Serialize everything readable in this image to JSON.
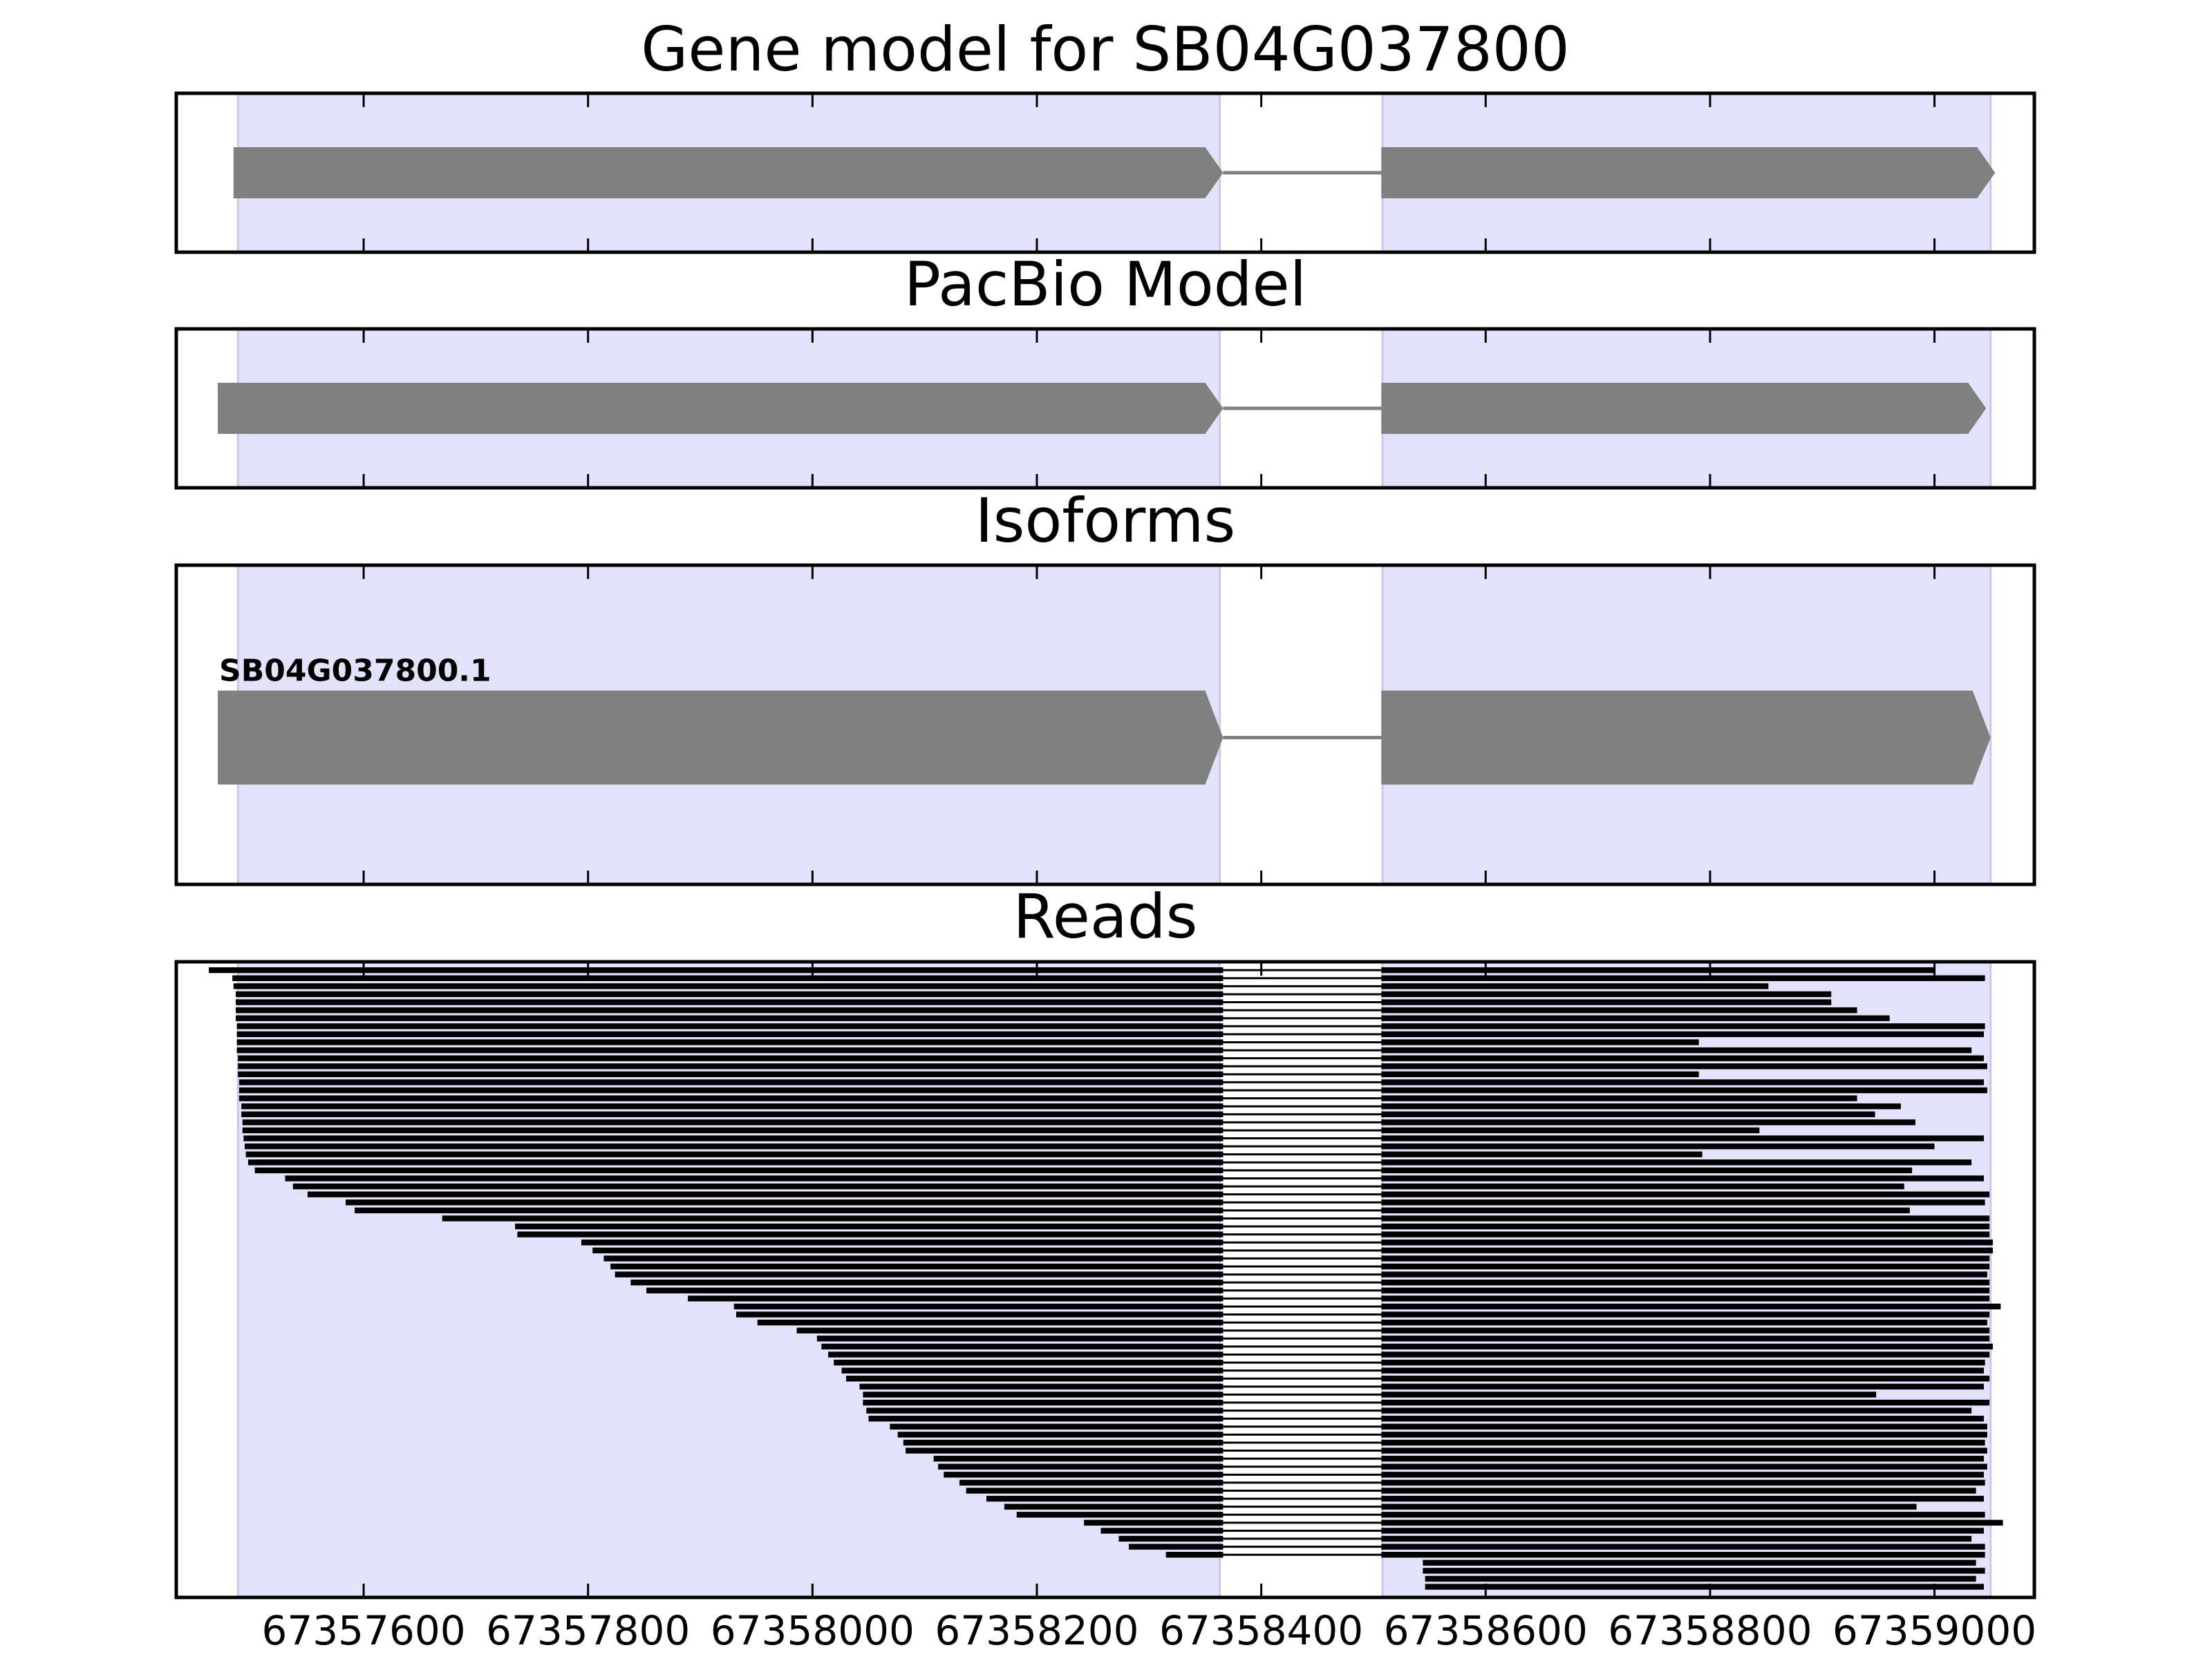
{
  "chart_data": [
    {
      "type": "gene",
      "title": "Gene model for SB04G037800",
      "xlim": [
        67357433,
        67359089
      ],
      "xticks": [
        67357600,
        67357800,
        67358000,
        67358200,
        67358400,
        67358600,
        67358800,
        67359000
      ],
      "highlight": [
        [
          67357488,
          67358363
        ],
        [
          67358508,
          67359050
        ]
      ],
      "highlight_color": "#e2e2fb",
      "color": "#808080",
      "exons": [
        [
          67357484,
          67358366
        ],
        [
          67358507,
          67359054
        ]
      ]
    },
    {
      "type": "gene",
      "title": "PacBio Model",
      "xlim": [
        67357433,
        67359089
      ],
      "xticks": [
        67357600,
        67357800,
        67358000,
        67358200,
        67358400,
        67358600,
        67358800,
        67359000
      ],
      "highlight": [
        [
          67357488,
          67358363
        ],
        [
          67358508,
          67359050
        ]
      ],
      "highlight_color": "#e2e2fb",
      "color": "#808080",
      "exons": [
        [
          67357470,
          67358366
        ],
        [
          67358507,
          67359046
        ]
      ]
    },
    {
      "type": "gene",
      "title": "Isoforms",
      "label": "SB04G037800.1",
      "xlim": [
        67357433,
        67359089
      ],
      "xticks": [
        67357600,
        67357800,
        67358000,
        67358200,
        67358400,
        67358600,
        67358800,
        67359000
      ],
      "highlight": [
        [
          67357488,
          67358363
        ],
        [
          67358508,
          67359050
        ]
      ],
      "highlight_color": "#e2e2fb",
      "color": "#808080",
      "exons": [
        [
          67357470,
          67358366
        ],
        [
          67358507,
          67359050
        ]
      ]
    },
    {
      "type": "reads",
      "title": "Reads",
      "xlim": [
        67357433,
        67359089
      ],
      "xticks": [
        67357600,
        67357800,
        67358000,
        67358200,
        67358400,
        67358600,
        67358800,
        67359000
      ],
      "highlight": [
        [
          67357488,
          67358363
        ],
        [
          67358508,
          67359050
        ]
      ],
      "highlight_color": "#e2e2fb",
      "color": "#000000",
      "intron": [
        67358366,
        67358507
      ],
      "starts": [
        67357462,
        67357483,
        67357484,
        67357486,
        67357486,
        67357486,
        67357486,
        67357487,
        67357487,
        67357487,
        67357487,
        67357488,
        67357488,
        67357488,
        67357489,
        67357489,
        67357489,
        67357491,
        67357491,
        67357492,
        67357492,
        67357493,
        67357494,
        67357495,
        67357497,
        67357503,
        67357530,
        67357537,
        67357550,
        67357584,
        67357592,
        67357670,
        67357735,
        67357737,
        67357794,
        67357804,
        67357814,
        67357820,
        67357824,
        67357838,
        67357852,
        67357889,
        67357930,
        67357932,
        67357951,
        67357986,
        67358004,
        67358008,
        67358014,
        67358019,
        67358026,
        67358030,
        67358042,
        67358045,
        67358045,
        67358048,
        67358050,
        67358069,
        67358076,
        67358081,
        67358083,
        67358108,
        67358112,
        67358117,
        67358131,
        67358137,
        67358155,
        67358171,
        67358182,
        67358242,
        67358257,
        67358273,
        67358282,
        67358315,
        67358544,
        67358544,
        67358546,
        67358546
      ],
      "ends": [
        67359000,
        67359045,
        67358852,
        67358908,
        67358908,
        67358931,
        67358960,
        67359045,
        67359044,
        67358790,
        67359033,
        67359044,
        67359047,
        67358790,
        67359044,
        67359047,
        67358931,
        67358970,
        67358947,
        67358983,
        67358844,
        67359044,
        67359000,
        67358793,
        67359033,
        67358980,
        67359044,
        67358973,
        67359049,
        67359045,
        67358978,
        67359049,
        67359049,
        67359049,
        67359052,
        67359052,
        67359049,
        67359049,
        67359047,
        67359049,
        67359049,
        67359049,
        67359059,
        67359049,
        67359047,
        67359049,
        67359049,
        67359052,
        67359049,
        67359045,
        67359044,
        67359049,
        67359044,
        67358948,
        67359049,
        67359033,
        67359044,
        67359047,
        67359047,
        67359045,
        67359047,
        67359044,
        67359047,
        67359044,
        67359045,
        67359037,
        67359044,
        67358984,
        67359045,
        67359061,
        67359044,
        67359033,
        67359045,
        67359045,
        67359037,
        67359045,
        67359037,
        67359044
      ]
    }
  ]
}
